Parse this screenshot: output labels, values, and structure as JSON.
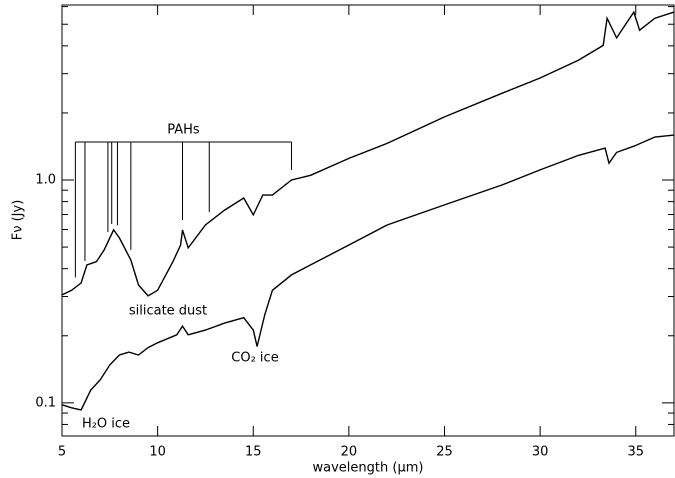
{
  "chart_data": {
    "type": "line",
    "x_label": "wavelength (μm)",
    "y_label": "Fν (Jy)",
    "xlim": [
      5,
      37
    ],
    "ylim": [
      0.071,
      6.1
    ],
    "y_log": true,
    "xticks": [
      5,
      10,
      15,
      20,
      25,
      30,
      35
    ],
    "yticks": [
      0.1,
      {
        "value": 1,
        "label": "1.0"
      }
    ],
    "yminorticks": [
      0.08,
      0.09,
      0.2,
      0.3,
      0.4,
      0.5,
      0.6,
      0.7,
      0.8,
      0.9,
      2,
      3,
      4,
      5,
      6
    ],
    "series": [
      {
        "color": "#000000",
        "x": [
          5,
          5.5,
          6,
          6.3,
          6.8,
          7.2,
          7.7,
          8,
          8.6,
          9,
          9.5,
          10,
          10.8,
          11.2,
          11.3,
          11.6,
          12.5,
          13.5,
          14.5,
          15,
          15.5,
          16,
          17,
          18,
          20,
          22,
          25,
          28,
          30,
          32,
          33.3,
          33.5,
          34,
          34.9,
          35.2,
          36,
          37
        ],
        "values": [
          0.305,
          0.32,
          0.345,
          0.416,
          0.43,
          0.485,
          0.597,
          0.55,
          0.438,
          0.338,
          0.302,
          0.32,
          0.43,
          0.511,
          0.597,
          0.496,
          0.628,
          0.733,
          0.83,
          0.697,
          0.856,
          0.856,
          1.0,
          1.05,
          1.25,
          1.46,
          1.92,
          2.45,
          2.87,
          3.45,
          4.02,
          5.32,
          4.34,
          5.67,
          4.7,
          5.32,
          5.67
        ]
      },
      {
        "color": "#000000",
        "x": [
          5,
          5.5,
          6,
          6.5,
          7,
          7.5,
          8,
          8.5,
          9,
          9.5,
          10,
          11,
          11.3,
          11.6,
          12.5,
          13.5,
          14.5,
          15,
          15.2,
          15.6,
          16,
          17,
          18,
          20,
          22,
          25,
          28,
          30,
          32,
          33.4,
          33.6,
          34,
          35,
          36,
          37
        ],
        "values": [
          0.098,
          0.095,
          0.093,
          0.114,
          0.127,
          0.148,
          0.164,
          0.169,
          0.164,
          0.177,
          0.186,
          0.202,
          0.221,
          0.202,
          0.212,
          0.228,
          0.241,
          0.212,
          0.179,
          0.248,
          0.32,
          0.375,
          0.416,
          0.511,
          0.628,
          0.773,
          0.95,
          1.11,
          1.29,
          1.39,
          1.19,
          1.33,
          1.43,
          1.56,
          1.59
        ]
      }
    ],
    "pah_label": "PAHs",
    "pah_features": [
      5.7,
      6.2,
      7.4,
      7.6,
      7.9,
      8.6,
      11.3,
      12.7,
      17.0
    ],
    "annotations": [
      "silicate dust",
      "CO₂ ice",
      "H₂O ice"
    ]
  }
}
